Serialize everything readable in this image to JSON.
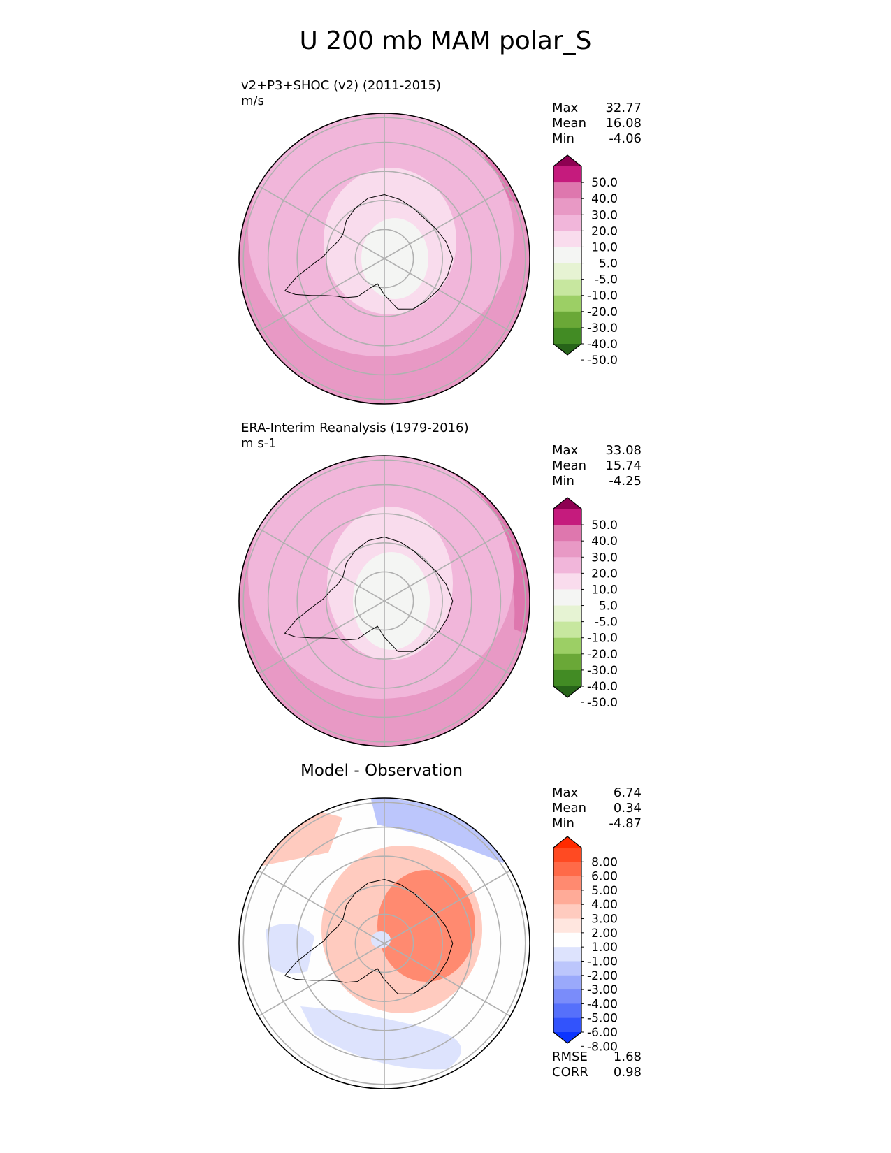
{
  "figure_title": "U 200 mb MAM polar_S",
  "panels": [
    {
      "title_line1": "v2+P3+SHOC (v2) (2011-2015)",
      "title_line2": "m/s",
      "stats": {
        "max_label": "Max",
        "max": "32.77",
        "mean_label": "Mean",
        "mean": "16.08",
        "min_label": "Min",
        "min": "-4.06"
      },
      "colorbar": {
        "labels": [
          "50.0",
          "40.0",
          "30.0",
          "20.0",
          "10.0",
          "5.0",
          "-5.0",
          "-10.0",
          "-20.0",
          "-30.0",
          "-40.0",
          "-50.0"
        ],
        "colors": [
          "#8e0152",
          "#c51b7d",
          "#de77ae",
          "#e899c5",
          "#f1b6da",
          "#f9dced",
          "#f4f5f3",
          "#e6f3d3",
          "#c7e79f",
          "#9ccf65",
          "#6aa837",
          "#428b24",
          "#276419"
        ]
      }
    },
    {
      "title_line1": "ERA-Interim Reanalysis (1979-2016)",
      "title_line2": "m s-1",
      "stats": {
        "max_label": "Max",
        "max": "33.08",
        "mean_label": "Mean",
        "mean": "15.74",
        "min_label": "Min",
        "min": "-4.25"
      },
      "colorbar": {
        "labels": [
          "50.0",
          "40.0",
          "30.0",
          "20.0",
          "10.0",
          "5.0",
          "-5.0",
          "-10.0",
          "-20.0",
          "-30.0",
          "-40.0",
          "-50.0"
        ],
        "colors": [
          "#8e0152",
          "#c51b7d",
          "#de77ae",
          "#e899c5",
          "#f1b6da",
          "#f9dced",
          "#f4f5f3",
          "#e6f3d3",
          "#c7e79f",
          "#9ccf65",
          "#6aa837",
          "#428b24",
          "#276419"
        ]
      }
    },
    {
      "title_line1": "Model - Observation",
      "stats": {
        "max_label": "Max",
        "max": "6.74",
        "mean_label": "Mean",
        "mean": "0.34",
        "min_label": "Min",
        "min": "-4.87"
      },
      "colorbar": {
        "labels": [
          "8.00",
          "6.00",
          "5.00",
          "4.00",
          "3.00",
          "2.00",
          "1.00",
          "-1.00",
          "-2.00",
          "-3.00",
          "-4.00",
          "-5.00",
          "-6.00",
          "-8.00"
        ],
        "colors": [
          "#ff2a00",
          "#ff4a22",
          "#ff6a48",
          "#ff8a70",
          "#ffab98",
          "#ffcbbf",
          "#ffe6df",
          "#fefefe",
          "#dde3fd",
          "#bcc6fc",
          "#9aa9fb",
          "#7a8cfa",
          "#5670fb",
          "#3253fc",
          "#0b34ff"
        ]
      },
      "footer": {
        "rmse_label": "RMSE",
        "rmse": "1.68",
        "corr_label": "CORR",
        "corr": "0.98"
      }
    }
  ]
}
